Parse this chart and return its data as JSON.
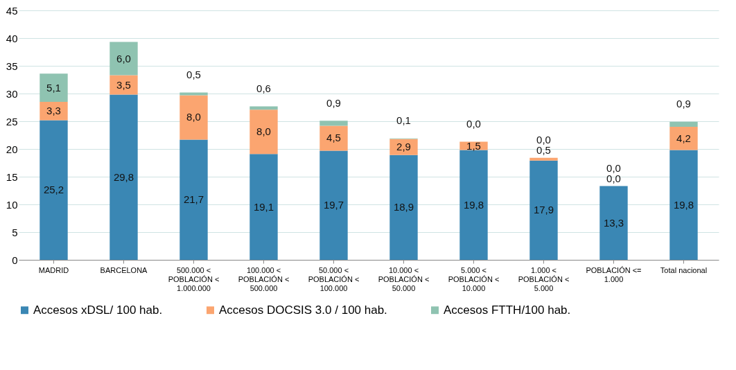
{
  "chart_data": {
    "type": "bar",
    "stacked": true,
    "categories": [
      "MADRID",
      "BARCELONA",
      "500.000 <\nPOBLACIÓN <\n1.000.000",
      "100.000 <\nPOBLACIÓN <\n500.000",
      "50.000 <\nPOBLACIÓN <\n100.000",
      "10.000 <\nPOBLACIÓN <\n50.000",
      "5.000 <\nPOBLACIÓN <\n10.000",
      "1.000 <\nPOBLACIÓN <\n5.000",
      "POBLACIÓN <=\n1.000",
      "Total nacional"
    ],
    "series": [
      {
        "name": "Accesos xDSL/ 100 hab.",
        "color": "#3a87b4",
        "values": [
          25.2,
          29.8,
          21.7,
          19.1,
          19.7,
          18.9,
          19.8,
          17.9,
          13.3,
          19.8
        ],
        "value_labels": [
          "25,2",
          "29,8",
          "21,7",
          "19,1",
          "19,7",
          "18,9",
          "19,8",
          "17,9",
          "13,3",
          "19,8"
        ]
      },
      {
        "name": "Accesos DOCSIS 3.0 / 100 hab.",
        "color": "#fba570",
        "values": [
          3.3,
          3.5,
          8.0,
          8.0,
          4.5,
          2.9,
          1.5,
          0.5,
          0.0,
          4.2
        ],
        "value_labels": [
          "3,3",
          "3,5",
          "8,0",
          "8,0",
          "4,5",
          "2,9",
          "1,5",
          "0,5",
          "0,0",
          "4,2"
        ]
      },
      {
        "name": "Accesos FTTH/100 hab.",
        "color": "#8fc3b1",
        "values": [
          5.1,
          6.0,
          0.5,
          0.6,
          0.9,
          0.1,
          0.0,
          0.0,
          0.0,
          0.9
        ],
        "value_labels": [
          "5,1",
          "6,0",
          "0,5",
          "0,6",
          "0,9",
          "0,1",
          "0,0",
          "0,0",
          "0,0",
          "0,9"
        ]
      }
    ],
    "ylim": [
      0,
      45
    ],
    "yticks": [
      0,
      5,
      10,
      15,
      20,
      25,
      30,
      35,
      40,
      45
    ],
    "grid": "y",
    "legend": "bottom"
  }
}
